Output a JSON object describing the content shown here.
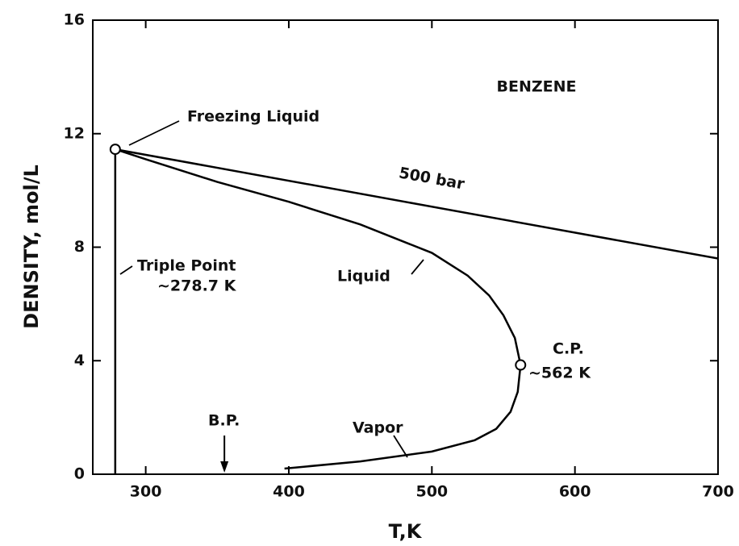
{
  "chart_data": {
    "type": "line",
    "title": "BENZENE",
    "xlabel": "T,K",
    "ylabel": "DENSITY, mol/L",
    "xlim": [
      263,
      700
    ],
    "xticks": [
      300,
      400,
      500,
      600,
      700
    ],
    "ylim": [
      0,
      16
    ],
    "yticks": [
      0,
      4,
      8,
      12,
      16
    ],
    "color": "#000000",
    "series": [
      {
        "name": "500 bar",
        "x": [
          278.7,
          700
        ],
        "values": [
          11.45,
          7.6
        ]
      },
      {
        "name": "Liquid",
        "x": [
          278.7,
          300,
          350,
          400,
          450,
          500,
          525,
          540,
          550,
          558,
          562
        ],
        "values": [
          11.45,
          11.1,
          10.3,
          9.6,
          8.8,
          7.8,
          7.0,
          6.3,
          5.6,
          4.8,
          3.85
        ]
      },
      {
        "name": "Vapor",
        "x": [
          562,
          560,
          555,
          545,
          530,
          500,
          450,
          397
        ],
        "values": [
          3.85,
          2.9,
          2.2,
          1.6,
          1.2,
          0.8,
          0.45,
          0.2
        ]
      },
      {
        "x": [
          278.7,
          278.7
        ],
        "values": [
          11.45,
          0
        ]
      }
    ],
    "points": {
      "x": [
        278.7,
        562
      ],
      "values": [
        11.45,
        3.85
      ]
    },
    "annotations": {
      "freezing": "Freezing Liquid",
      "triple": "Triple Point",
      "triple_t": "~278.7 K",
      "bp": "B.P.",
      "cp": "C.P.",
      "cp_t": "~562 K"
    },
    "bp_x": 355
  }
}
